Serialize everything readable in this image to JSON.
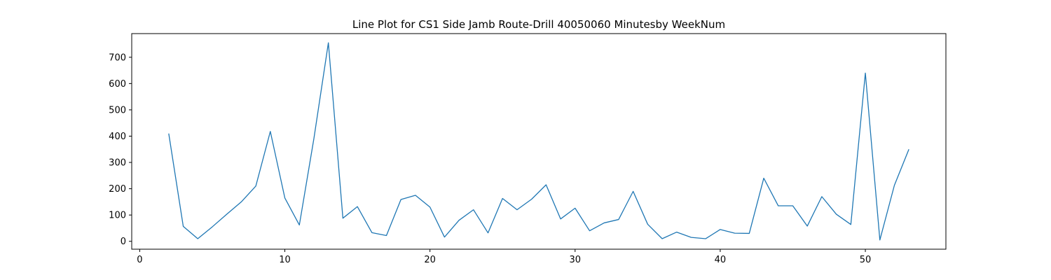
{
  "chart_data": {
    "type": "line",
    "title": "Line Plot for CS1 Side Jamb Route-Drill 40050060 Minutesby WeekNum",
    "xlabel": "",
    "ylabel": "",
    "xlim": [
      -0.55,
      55.55
    ],
    "ylim": [
      -30,
      790
    ],
    "xticks": [
      0,
      10,
      20,
      30,
      40,
      50
    ],
    "yticks": [
      0,
      100,
      200,
      300,
      400,
      500,
      600,
      700
    ],
    "grid": false,
    "series": [
      {
        "color": "#1f77b4",
        "x": [
          2,
          3,
          4,
          5,
          6,
          7,
          8,
          9,
          10,
          11,
          12,
          13,
          14,
          15,
          16,
          17,
          18,
          19,
          20,
          21,
          22,
          23,
          24,
          25,
          26,
          27,
          28,
          29,
          30,
          31,
          32,
          33,
          34,
          35,
          36,
          37,
          38,
          39,
          40,
          41,
          42,
          43,
          44,
          45,
          46,
          47,
          48,
          49,
          50,
          51,
          52,
          53
        ],
        "y": [
          410,
          57,
          10,
          55,
          103,
          150,
          210,
          418,
          165,
          62,
          390,
          755,
          88,
          132,
          33,
          22,
          159,
          175,
          130,
          16,
          80,
          120,
          32,
          163,
          120,
          160,
          215,
          85,
          126,
          40,
          70,
          83,
          190,
          65,
          10,
          35,
          15,
          10,
          45,
          31,
          30,
          240,
          135,
          135,
          58,
          170,
          103,
          64,
          640,
          5,
          213,
          350
        ]
      }
    ]
  }
}
